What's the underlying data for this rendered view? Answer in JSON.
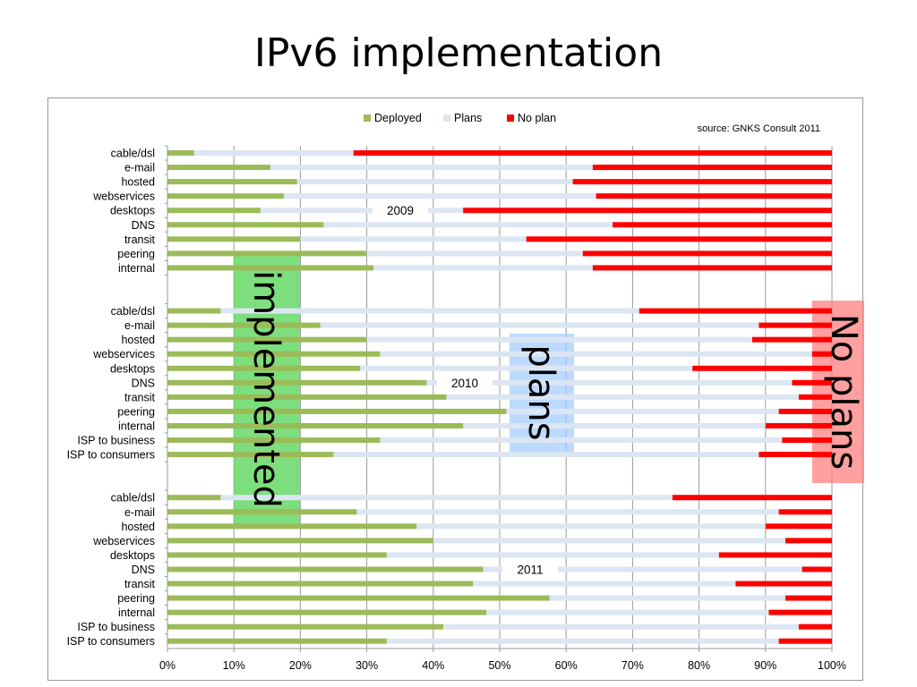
{
  "slide": {
    "title": "IPv6 implementation"
  },
  "chart_data": {
    "type": "bar",
    "orientation": "horizontal",
    "stacked": true,
    "percent_stacked": true,
    "source": "source: GNKS Consult 2011",
    "legend": [
      "Deployed",
      "Plans",
      "No plan"
    ],
    "legend_position": "top",
    "colors": {
      "Deployed": "#9bbb59",
      "Plans": "#dce6f2",
      "No plan": "#ff0000"
    },
    "xlim": [
      0,
      100
    ],
    "x_ticks": [
      "0%",
      "10%",
      "20%",
      "30%",
      "40%",
      "50%",
      "60%",
      "70%",
      "80%",
      "90%",
      "100%"
    ],
    "grid": true,
    "groups": [
      {
        "label": "2009",
        "categories": [
          "cable/dsl",
          "e-mail",
          "hosted",
          "webservices",
          "desktops",
          "DNS",
          "transit",
          "peering",
          "internal"
        ],
        "deployed": [
          4,
          15.5,
          19.5,
          17.5,
          14,
          23.5,
          20,
          30,
          31
        ],
        "no_plan_start": [
          28,
          64,
          61,
          64.5,
          44.5,
          67,
          54,
          62.5,
          64
        ]
      },
      {
        "label": "2010",
        "categories": [
          "cable/dsl",
          "e-mail",
          "hosted",
          "webservices",
          "desktops",
          "DNS",
          "transit",
          "peering",
          "internal",
          "ISP to business",
          "ISP to consumers"
        ],
        "deployed": [
          8,
          23,
          30,
          32,
          29,
          39,
          42,
          51,
          44.5,
          32,
          25
        ],
        "no_plan_start": [
          71,
          89,
          88,
          97,
          79,
          94,
          95,
          92,
          90,
          92.5,
          89
        ]
      },
      {
        "label": "2011",
        "categories": [
          "cable/dsl",
          "e-mail",
          "hosted",
          "webservices",
          "desktops",
          "DNS",
          "transit",
          "peering",
          "internal",
          "ISP to business",
          "ISP to consumers"
        ],
        "deployed": [
          8,
          28.5,
          37.5,
          40,
          33,
          47.5,
          46,
          57.5,
          48,
          41.5,
          33
        ],
        "no_plan_start": [
          76,
          92,
          90,
          93,
          83,
          95.5,
          85.5,
          93,
          90.5,
          95,
          92
        ]
      }
    ],
    "annotations": [
      "implemented",
      "plans",
      "No plans"
    ]
  }
}
